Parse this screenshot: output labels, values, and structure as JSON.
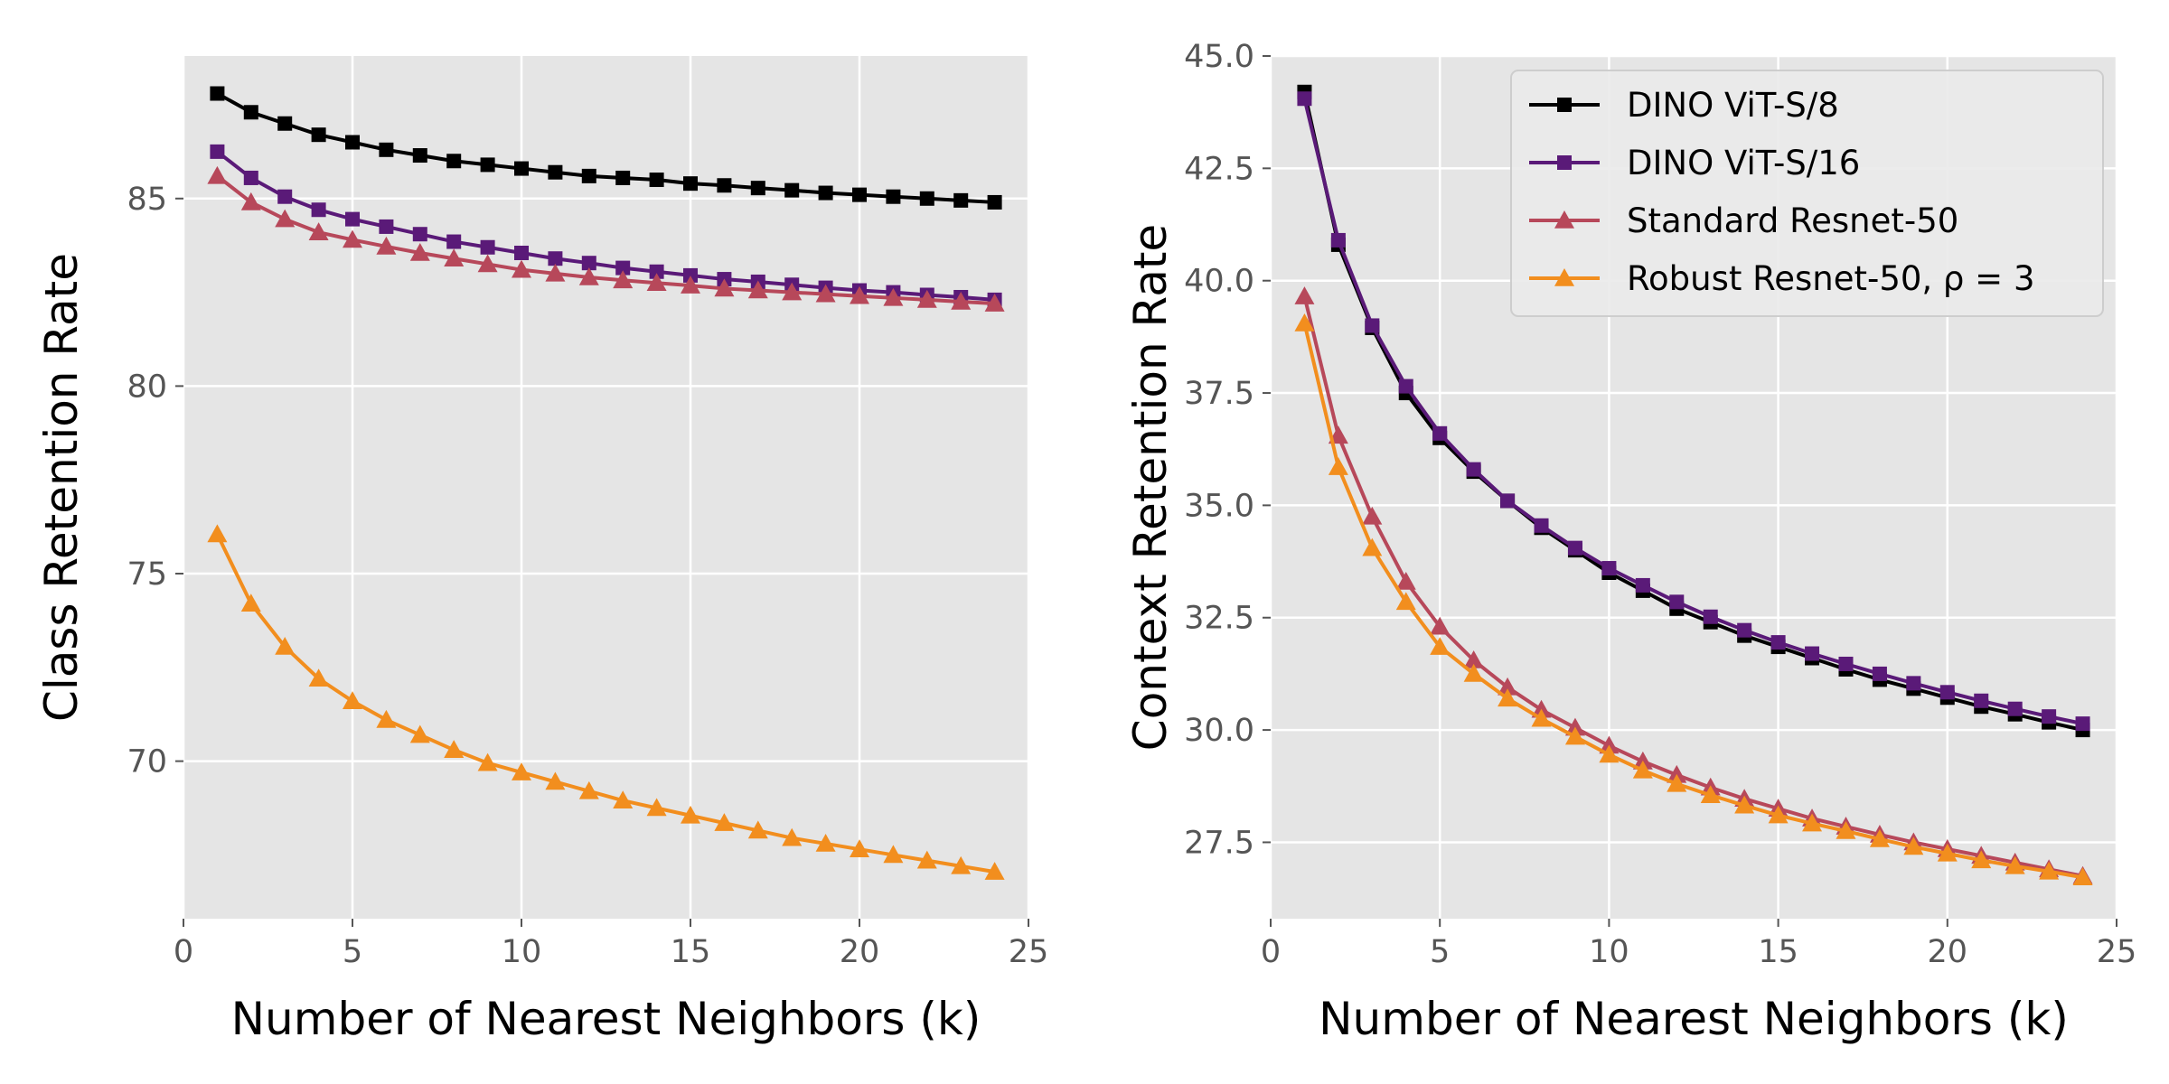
{
  "chart_data": [
    {
      "type": "line",
      "title": "",
      "xlabel": "Number of Nearest Neighbors (k)",
      "ylabel": "Class Retention Rate",
      "xlim": [
        0,
        25
      ],
      "ylim": [
        65.8,
        88.8
      ],
      "xticks": [
        0,
        5,
        10,
        15,
        20,
        25
      ],
      "yticks": [
        70,
        75,
        80,
        85
      ],
      "grid": true,
      "legend": null,
      "series": [
        {
          "name": "DINO ViT-S/8",
          "color": "#000000",
          "marker": "square",
          "x": [
            1,
            2,
            3,
            4,
            5,
            6,
            7,
            8,
            9,
            10,
            11,
            12,
            13,
            14,
            15,
            16,
            17,
            18,
            19,
            20,
            21,
            22,
            23,
            24
          ],
          "values": [
            87.8,
            87.3,
            87.0,
            86.7,
            86.5,
            86.3,
            86.15,
            86.0,
            85.9,
            85.8,
            85.7,
            85.6,
            85.55,
            85.5,
            85.4,
            85.35,
            85.28,
            85.22,
            85.15,
            85.1,
            85.05,
            85.0,
            84.95,
            84.9
          ]
        },
        {
          "name": "DINO ViT-S/16",
          "color": "#5a1a78",
          "marker": "square",
          "x": [
            1,
            2,
            3,
            4,
            5,
            6,
            7,
            8,
            9,
            10,
            11,
            12,
            13,
            14,
            15,
            16,
            17,
            18,
            19,
            20,
            21,
            22,
            23,
            24
          ],
          "values": [
            86.25,
            85.55,
            85.05,
            84.7,
            84.45,
            84.25,
            84.05,
            83.85,
            83.7,
            83.55,
            83.4,
            83.28,
            83.15,
            83.05,
            82.95,
            82.85,
            82.78,
            82.7,
            82.62,
            82.55,
            82.5,
            82.43,
            82.37,
            82.3
          ]
        },
        {
          "name": "Standard Resnet-50",
          "color": "#b7485a",
          "marker": "triangle",
          "x": [
            1,
            2,
            3,
            4,
            5,
            6,
            7,
            8,
            9,
            10,
            11,
            12,
            13,
            14,
            15,
            16,
            17,
            18,
            19,
            20,
            21,
            22,
            23,
            24
          ],
          "values": [
            85.6,
            84.9,
            84.45,
            84.1,
            83.9,
            83.72,
            83.55,
            83.4,
            83.25,
            83.1,
            83.0,
            82.9,
            82.82,
            82.75,
            82.68,
            82.6,
            82.55,
            82.5,
            82.45,
            82.4,
            82.35,
            82.3,
            82.25,
            82.2
          ]
        },
        {
          "name": "Robust Resnet-50, ρ = 3",
          "color": "#f28e1e",
          "marker": "triangle",
          "x": [
            1,
            2,
            3,
            4,
            5,
            6,
            7,
            8,
            9,
            10,
            11,
            12,
            13,
            14,
            15,
            16,
            17,
            18,
            19,
            20,
            21,
            22,
            23,
            24
          ],
          "values": [
            76.05,
            74.2,
            73.05,
            72.2,
            71.6,
            71.1,
            70.7,
            70.3,
            69.95,
            69.7,
            69.45,
            69.2,
            68.95,
            68.75,
            68.55,
            68.35,
            68.15,
            67.95,
            67.8,
            67.65,
            67.5,
            67.35,
            67.2,
            67.05
          ]
        }
      ]
    },
    {
      "type": "line",
      "title": "",
      "xlabel": "Number of Nearest Neighbors (k)",
      "ylabel": "Context Retention Rate",
      "xlim": [
        0,
        25
      ],
      "ylim": [
        25.8,
        45.0
      ],
      "xticks": [
        0,
        5,
        10,
        15,
        20,
        25
      ],
      "yticks": [
        27.5,
        30.0,
        32.5,
        35.0,
        37.5,
        40.0,
        42.5,
        45.0
      ],
      "ytick_labels": [
        "27.5",
        "30.0",
        "32.5",
        "35.0",
        "37.5",
        "40.0",
        "42.5",
        "45.0"
      ],
      "grid": true,
      "legend": "top-right",
      "series": [
        {
          "name": "DINO ViT-S/8",
          "color": "#000000",
          "marker": "square",
          "x": [
            1,
            2,
            3,
            4,
            5,
            6,
            7,
            8,
            9,
            10,
            11,
            12,
            13,
            14,
            15,
            16,
            17,
            18,
            19,
            20,
            21,
            22,
            23,
            24
          ],
          "values": [
            44.2,
            40.8,
            38.95,
            37.5,
            36.5,
            35.75,
            35.1,
            34.5,
            34.0,
            33.5,
            33.1,
            32.7,
            32.4,
            32.1,
            31.85,
            31.6,
            31.35,
            31.12,
            30.92,
            30.72,
            30.52,
            30.35,
            30.17,
            30.0
          ]
        },
        {
          "name": "DINO ViT-S/16",
          "color": "#5a1a78",
          "marker": "square",
          "x": [
            1,
            2,
            3,
            4,
            5,
            6,
            7,
            8,
            9,
            10,
            11,
            12,
            13,
            14,
            15,
            16,
            17,
            18,
            19,
            20,
            21,
            22,
            23,
            24
          ],
          "values": [
            44.05,
            40.9,
            39.0,
            37.65,
            36.6,
            35.8,
            35.1,
            34.55,
            34.05,
            33.6,
            33.22,
            32.85,
            32.52,
            32.22,
            31.95,
            31.7,
            31.47,
            31.25,
            31.04,
            30.84,
            30.65,
            30.47,
            30.3,
            30.14
          ]
        },
        {
          "name": "Standard Resnet-50",
          "color": "#b7485a",
          "marker": "triangle",
          "x": [
            1,
            2,
            3,
            4,
            5,
            6,
            7,
            8,
            9,
            10,
            11,
            12,
            13,
            14,
            15,
            16,
            17,
            18,
            19,
            20,
            21,
            22,
            23,
            24
          ],
          "values": [
            39.65,
            36.55,
            34.75,
            33.3,
            32.3,
            31.55,
            30.95,
            30.45,
            30.05,
            29.65,
            29.3,
            29.0,
            28.72,
            28.47,
            28.25,
            28.03,
            27.85,
            27.67,
            27.5,
            27.35,
            27.2,
            27.05,
            26.9,
            26.75
          ]
        },
        {
          "name": "Robust Resnet-50, ρ = 3",
          "color": "#f28e1e",
          "marker": "triangle",
          "x": [
            1,
            2,
            3,
            4,
            5,
            6,
            7,
            8,
            9,
            10,
            11,
            12,
            13,
            14,
            15,
            16,
            17,
            18,
            19,
            20,
            21,
            22,
            23,
            24
          ],
          "values": [
            39.05,
            35.85,
            34.05,
            32.85,
            31.85,
            31.25,
            30.7,
            30.25,
            29.85,
            29.45,
            29.1,
            28.8,
            28.55,
            28.32,
            28.1,
            27.92,
            27.75,
            27.57,
            27.4,
            27.25,
            27.1,
            26.97,
            26.85,
            26.72
          ]
        }
      ]
    }
  ]
}
